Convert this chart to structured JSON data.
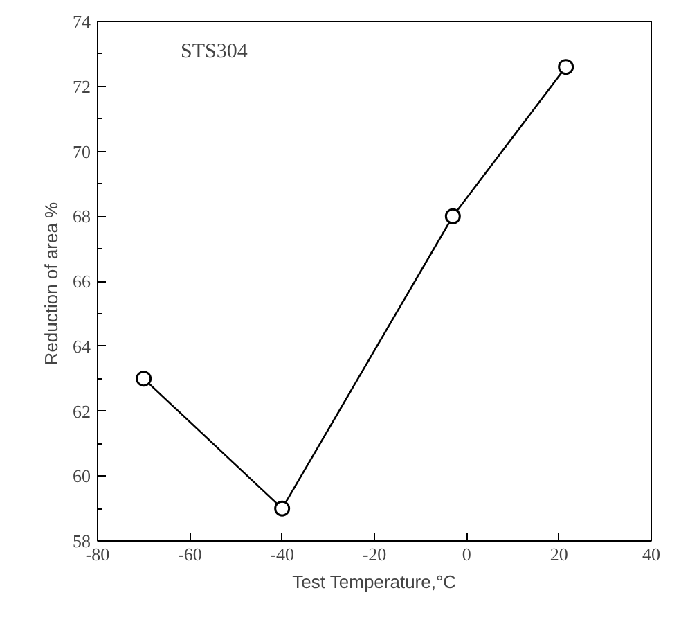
{
  "chart_data": {
    "type": "line",
    "xlabel": "Test Temperature,°C",
    "ylabel": "Reduction of area  %",
    "x": [
      -70,
      -40,
      -3,
      21.5
    ],
    "series": [
      {
        "color": "#000000",
        "values": [
          63.0,
          59.0,
          68.0,
          72.6
        ]
      }
    ],
    "xlim": [
      -80,
      40
    ],
    "xticks": [
      -80,
      -60,
      -40,
      -20,
      0,
      20,
      40
    ],
    "ylim": [
      58,
      74
    ],
    "yticks": [
      58,
      60,
      62,
      64,
      66,
      68,
      70,
      72,
      74
    ],
    "marker": "circle",
    "line_style": "solid",
    "grid": false,
    "annotations": [
      "STS304"
    ]
  }
}
